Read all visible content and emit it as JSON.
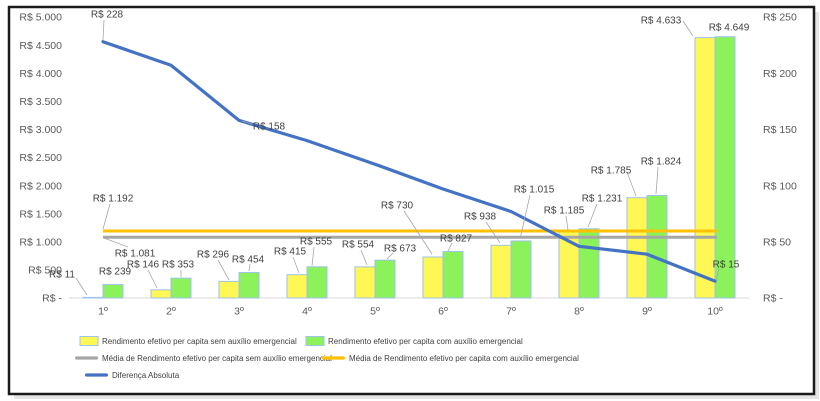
{
  "chart_data": {
    "type": "combo-bar-line",
    "title": "",
    "grid": false,
    "legend_position": "bottom",
    "categories": [
      "1º",
      "2º",
      "3º",
      "4º",
      "5º",
      "6º",
      "7º",
      "8º",
      "9º",
      "10º"
    ],
    "left_axis": {
      "min": 0,
      "max": 5000,
      "tick_step": 500,
      "ticks": [
        "R$ -",
        "R$ 500",
        "R$ 1.000",
        "R$ 1.500",
        "R$ 2.000",
        "R$ 2.500",
        "R$ 3.000",
        "R$ 3.500",
        "R$ 4.000",
        "R$ 4.500",
        "R$ 5.000"
      ]
    },
    "right_axis": {
      "min": 0,
      "max": 250,
      "tick_step": 50,
      "ticks": [
        "R$ -",
        "R$ 50",
        "R$ 100",
        "R$ 150",
        "R$ 200",
        "R$ 250"
      ]
    },
    "series": [
      {
        "name": "Rendimento efetivo per capita sem auxílio emergencial",
        "type": "bar",
        "axis": "left",
        "color": "#FFF754",
        "border_color": "#9DC3E6",
        "values": [
          11,
          146,
          296,
          415,
          554,
          730,
          938,
          1185,
          1785,
          4633
        ],
        "point_labels": [
          "R$ 11",
          "R$ 146",
          "R$ 296",
          "R$ 415",
          "R$ 554",
          "R$ 730",
          "R$ 938",
          "R$ 1.185",
          "R$ 1.785",
          "R$ 4.633"
        ]
      },
      {
        "name": "Rendimento efetivo per capita com auxílio emergencial",
        "type": "bar",
        "axis": "left",
        "color": "#8CF25C",
        "border_color": "#9DC3E6",
        "values": [
          239,
          353,
          454,
          555,
          673,
          827,
          1015,
          1231,
          1824,
          4649
        ],
        "point_labels": [
          "R$ 239",
          "R$ 353",
          "R$ 454",
          "R$ 555",
          "R$ 673",
          "R$ 827",
          "R$ 1.015",
          "R$ 1.231",
          "R$ 1.824",
          "R$ 4.649"
        ]
      },
      {
        "name": "Média de Rendimento efetivo per capita sem auxílio emergencial",
        "type": "avg-line",
        "axis": "left",
        "color": "#A6A6A6",
        "value": 1081,
        "label": "R$ 1.081"
      },
      {
        "name": "Média de Rendimento efetivo per capita com auxílio emergencial",
        "type": "avg-line",
        "axis": "left",
        "color": "#FFC000",
        "value": 1192,
        "label": "R$ 1.192"
      },
      {
        "name": "Diferença Absoluta",
        "type": "line",
        "axis": "right",
        "color": "#4472C4",
        "values": [
          228,
          207,
          158,
          140,
          119,
          97,
          77,
          46,
          39,
          15
        ],
        "point_labels": {
          "0": "R$ 228",
          "2": "R$ 158",
          "9": "R$ 15"
        }
      }
    ],
    "legend": [
      {
        "label": "Rendimento efetivo per capita sem auxílio emergencial",
        "marker": "bar",
        "color": "#FFF754"
      },
      {
        "label": "Rendimento efetivo per capita com auxílio emergencial",
        "marker": "bar",
        "color": "#8CF25C"
      },
      {
        "label": "Média de Rendimento efetivo per capita sem auxílio emergencial",
        "marker": "line",
        "color": "#A6A6A6"
      },
      {
        "label": "Média de Rendimento efetivo per capita com auxílio emergencial",
        "marker": "line",
        "color": "#FFC000"
      },
      {
        "label": "Diferença Absoluta",
        "marker": "line",
        "color": "#4472C4"
      }
    ],
    "colors": {
      "bar_sem_auxilio": "#FFF754",
      "bar_com_auxilio": "#8CF25C",
      "bar_border": "#9DC3E6",
      "media_sem_auxilio": "#A6A6A6",
      "media_com_auxilio": "#FFC000",
      "diferenca_absoluta": "#4472C4",
      "axis_text": "#595959",
      "axis_line": "#D9D9D9",
      "frame_border": "#1a1a1a"
    }
  }
}
